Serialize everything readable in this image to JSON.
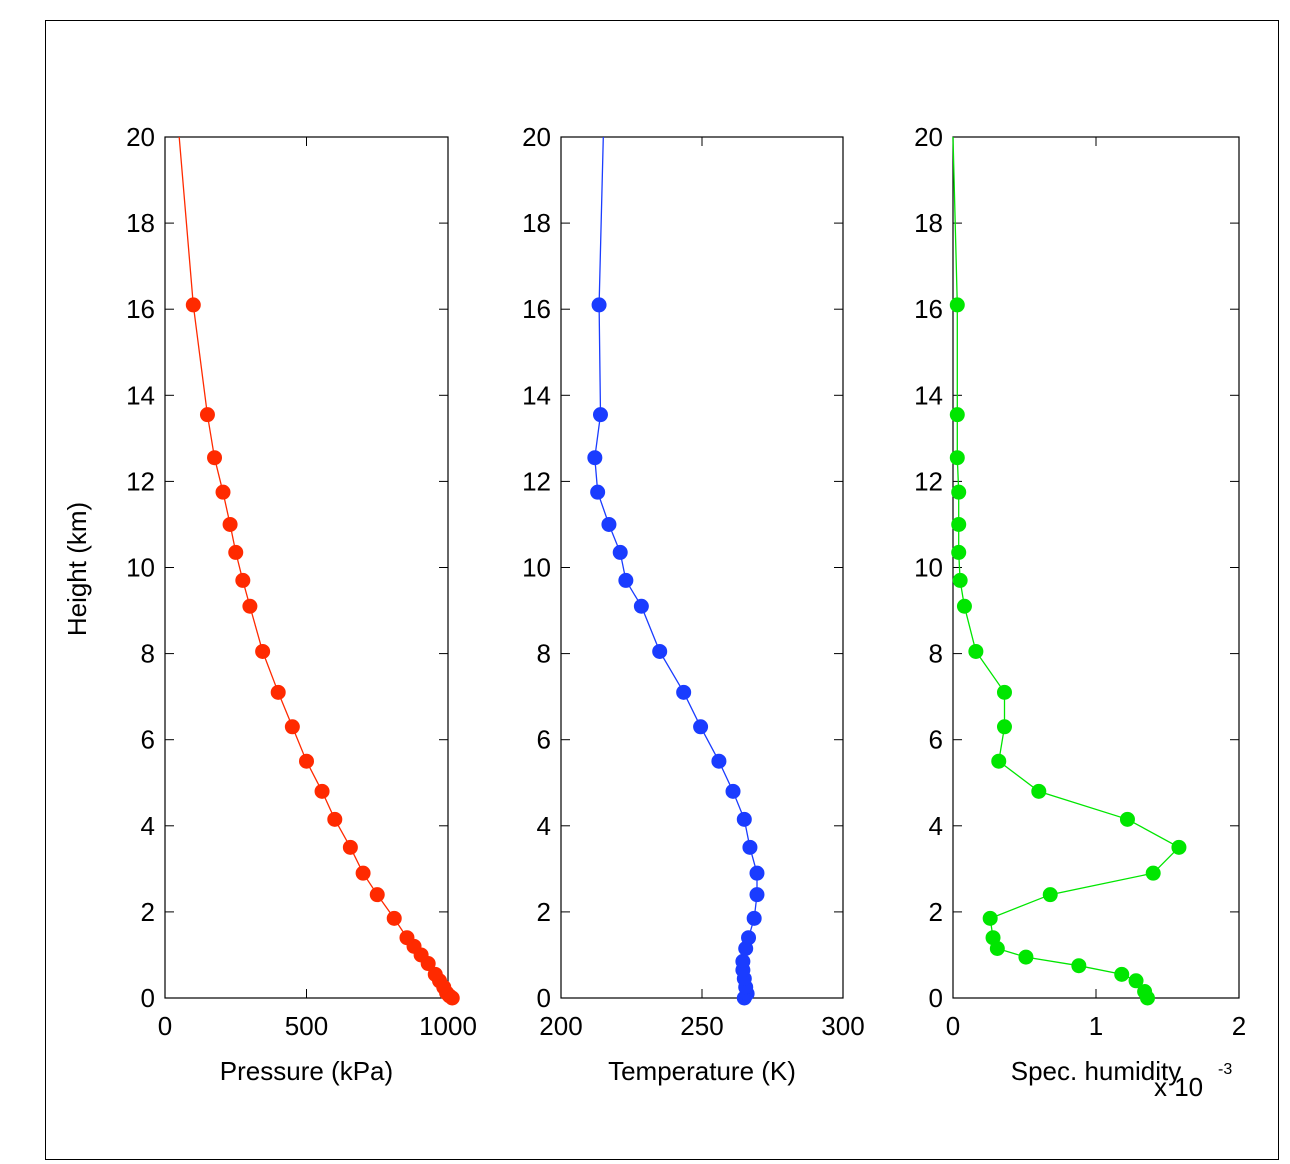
{
  "figure": {
    "ylabel": "Height (km)",
    "exponent_base": "x 10",
    "exponent_power": "-3"
  },
  "chart_data": [
    {
      "type": "line",
      "xlabel": "Pressure (kPa)",
      "ylabel": "Height (km)",
      "xlim": [
        0,
        1000
      ],
      "ylim": [
        0,
        20
      ],
      "xticks": [
        "0",
        "500",
        "1000"
      ],
      "yticks": [
        "0",
        "2",
        "4",
        "6",
        "8",
        "10",
        "12",
        "14",
        "16",
        "18",
        "20"
      ],
      "color": "#ff2a00",
      "markers": true,
      "curve_top": [
        50,
        20
      ],
      "points": [
        [
          1015,
          0
        ],
        [
          1005,
          0.05
        ],
        [
          995,
          0.12
        ],
        [
          985,
          0.25
        ],
        [
          970,
          0.4
        ],
        [
          955,
          0.55
        ],
        [
          930,
          0.8
        ],
        [
          905,
          1.0
        ],
        [
          880,
          1.2
        ],
        [
          855,
          1.4
        ],
        [
          810,
          1.85
        ],
        [
          750,
          2.4
        ],
        [
          700,
          2.9
        ],
        [
          655,
          3.5
        ],
        [
          600,
          4.15
        ],
        [
          555,
          4.8
        ],
        [
          500,
          5.5
        ],
        [
          450,
          6.3
        ],
        [
          400,
          7.1
        ],
        [
          345,
          8.05
        ],
        [
          300,
          9.1
        ],
        [
          275,
          9.7
        ],
        [
          250,
          10.35
        ],
        [
          230,
          11.0
        ],
        [
          205,
          11.75
        ],
        [
          175,
          12.55
        ],
        [
          150,
          13.55
        ],
        [
          100,
          16.1
        ]
      ]
    },
    {
      "type": "line",
      "xlabel": "Temperature (K)",
      "ylabel": "",
      "xlim": [
        200,
        300
      ],
      "ylim": [
        0,
        20
      ],
      "xticks": [
        "200",
        "250",
        "300"
      ],
      "yticks": [
        "0",
        "2",
        "4",
        "6",
        "8",
        "10",
        "12",
        "14",
        "16",
        "18",
        "20"
      ],
      "color": "#1a3cff",
      "markers": true,
      "curve_top": [
        215,
        20
      ],
      "points": [
        [
          265,
          0
        ],
        [
          266,
          0.1
        ],
        [
          265.5,
          0.25
        ],
        [
          265,
          0.45
        ],
        [
          264.5,
          0.65
        ],
        [
          264.5,
          0.85
        ],
        [
          265.5,
          1.15
        ],
        [
          266.5,
          1.4
        ],
        [
          268.5,
          1.85
        ],
        [
          269.5,
          2.4
        ],
        [
          269.5,
          2.9
        ],
        [
          267,
          3.5
        ],
        [
          265,
          4.15
        ],
        [
          261,
          4.8
        ],
        [
          256,
          5.5
        ],
        [
          249.5,
          6.3
        ],
        [
          243.5,
          7.1
        ],
        [
          235,
          8.05
        ],
        [
          228.5,
          9.1
        ],
        [
          223,
          9.7
        ],
        [
          221,
          10.35
        ],
        [
          217,
          11.0
        ],
        [
          213,
          11.75
        ],
        [
          212,
          12.55
        ],
        [
          214,
          13.55
        ],
        [
          213.5,
          16.1
        ]
      ]
    },
    {
      "type": "line",
      "xlabel": "Spec. humidity",
      "ylabel": "",
      "xlim": [
        0,
        2
      ],
      "ylim": [
        0,
        20
      ],
      "xticks": [
        "0",
        "1",
        "2"
      ],
      "yticks": [
        "0",
        "2",
        "4",
        "6",
        "8",
        "10",
        "12",
        "14",
        "16",
        "18",
        "20"
      ],
      "color": "#00e600",
      "markers": true,
      "curve_top": [
        0,
        20
      ],
      "points": [
        [
          1.36,
          0
        ],
        [
          1.34,
          0.15
        ],
        [
          1.28,
          0.4
        ],
        [
          1.18,
          0.55
        ],
        [
          0.88,
          0.75
        ],
        [
          0.51,
          0.95
        ],
        [
          0.31,
          1.15
        ],
        [
          0.28,
          1.4
        ],
        [
          0.26,
          1.85
        ],
        [
          0.68,
          2.4
        ],
        [
          1.4,
          2.9
        ],
        [
          1.58,
          3.5
        ],
        [
          1.22,
          4.15
        ],
        [
          0.6,
          4.8
        ],
        [
          0.32,
          5.5
        ],
        [
          0.36,
          6.3
        ],
        [
          0.36,
          7.1
        ],
        [
          0.16,
          8.05
        ],
        [
          0.08,
          9.1
        ],
        [
          0.05,
          9.7
        ],
        [
          0.04,
          10.35
        ],
        [
          0.04,
          11.0
        ],
        [
          0.04,
          11.75
        ],
        [
          0.03,
          12.55
        ],
        [
          0.03,
          13.55
        ],
        [
          0.03,
          16.1
        ]
      ]
    }
  ]
}
